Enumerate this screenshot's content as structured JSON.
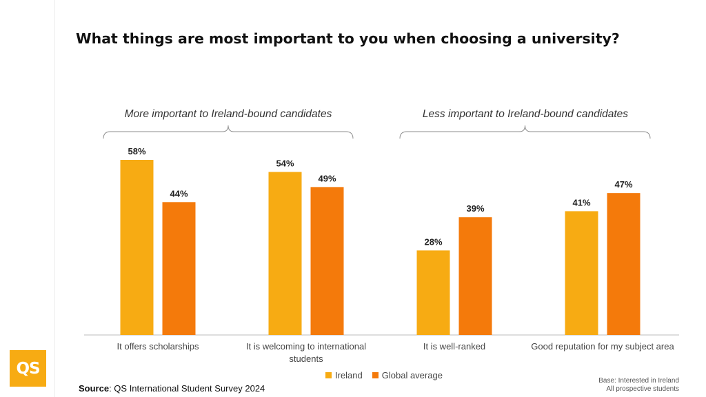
{
  "title": "What things are most important to you when choosing a university?",
  "groups": [
    {
      "label": "More important to Ireland-bound candidates"
    },
    {
      "label": "Less important to Ireland-bound candidates"
    }
  ],
  "colors": {
    "ireland": "#f7ab13",
    "global": "#f47a0b",
    "axis": "#bdbdbd",
    "bracket": "#8c8c8c"
  },
  "chart_data": {
    "type": "bar",
    "title": "What things are most important to you when choosing a university?",
    "categories": [
      "It offers scholarships",
      "It is welcoming to international students",
      "It is well-ranked",
      "Good reputation for my subject area"
    ],
    "category_lines": [
      [
        "It offers scholarships"
      ],
      [
        "It is welcoming to international",
        "students"
      ],
      [
        "It is well-ranked"
      ],
      [
        "Good reputation for my subject area"
      ]
    ],
    "series": [
      {
        "name": "Ireland",
        "values": [
          58,
          54,
          28,
          41
        ]
      },
      {
        "name": "Global average",
        "values": [
          44,
          49,
          39,
          47
        ]
      }
    ],
    "value_labels": [
      [
        "58%",
        "54%",
        "28%",
        "41%"
      ],
      [
        "44%",
        "49%",
        "39%",
        "47%"
      ]
    ],
    "ylim": [
      0,
      60
    ],
    "grid": false,
    "legend_position": "bottom-center"
  },
  "legend": {
    "ireland": "Ireland",
    "global": "Global average"
  },
  "logo": {
    "text": "QS"
  },
  "source": {
    "label": "Source",
    "text": ": QS International Student Survey 2024"
  },
  "base_note": {
    "line1": "Base: Interested in Ireland",
    "line2": "All prospective students"
  }
}
